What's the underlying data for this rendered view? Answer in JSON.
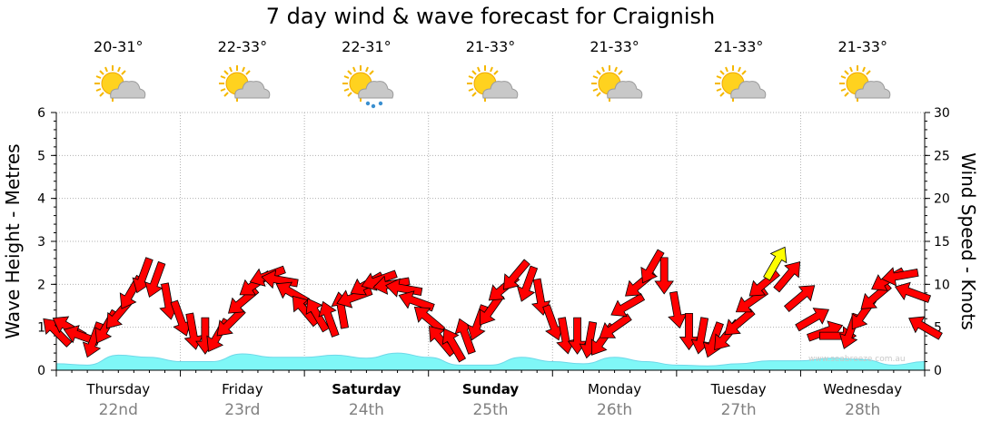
{
  "title": "7 day wind & wave forecast for Craignish",
  "watermark": "www.seabreeze.com.au",
  "colors": {
    "arrow": "#ff0000",
    "arrow_highlight": "#ffff00",
    "wave_fill": "#7ff7f7",
    "wave_line": "#6ed8e8",
    "grid": "#b0b0b0"
  },
  "days": [
    {
      "name": "Thursday",
      "date": "22nd",
      "temp": "20-31°",
      "icon": "sun-cloud-icon",
      "bold": false
    },
    {
      "name": "Friday",
      "date": "23rd",
      "temp": "22-33°",
      "icon": "sun-cloud-icon",
      "bold": false
    },
    {
      "name": "Saturday",
      "date": "24th",
      "temp": "22-31°",
      "icon": "sun-cloud-rain-icon",
      "bold": true
    },
    {
      "name": "Sunday",
      "date": "25th",
      "temp": "21-33°",
      "icon": "sun-cloud-icon",
      "bold": true
    },
    {
      "name": "Monday",
      "date": "26th",
      "temp": "21-33°",
      "icon": "sun-cloud-icon",
      "bold": false
    },
    {
      "name": "Tuesday",
      "date": "27th",
      "temp": "21-33°",
      "icon": "sun-cloud-icon",
      "bold": false
    },
    {
      "name": "Wednesday",
      "date": "28th",
      "temp": "21-33°",
      "icon": "sun-cloud-icon",
      "bold": false
    }
  ],
  "chart_data": {
    "type": "area",
    "title": "7 day wind & wave forecast for Craignish",
    "x_unit": "day",
    "x_range": [
      0,
      7
    ],
    "left_axis": {
      "label": "Wave Height - Metres",
      "range": [
        0,
        6
      ],
      "ticks": [
        "0",
        "1",
        "2",
        "3",
        "4",
        "5",
        "6"
      ]
    },
    "right_axis": {
      "label": "Wind Speed - Knots",
      "range": [
        0,
        30
      ],
      "ticks": [
        "0",
        "5",
        "10",
        "15",
        "20",
        "25",
        "30"
      ]
    },
    "grid": true,
    "wave_height_m": {
      "x": [
        0,
        0.25,
        0.5,
        0.75,
        1,
        1.25,
        1.5,
        1.75,
        2,
        2.25,
        2.5,
        2.75,
        3,
        3.25,
        3.5,
        3.75,
        4,
        4.25,
        4.5,
        4.75,
        5,
        5.25,
        5.5,
        5.75,
        6,
        6.25,
        6.5,
        6.75,
        7
      ],
      "y": [
        0.15,
        0.12,
        0.35,
        0.3,
        0.2,
        0.2,
        0.38,
        0.3,
        0.3,
        0.35,
        0.28,
        0.4,
        0.3,
        0.12,
        0.12,
        0.3,
        0.2,
        0.15,
        0.3,
        0.2,
        0.12,
        0.1,
        0.15,
        0.22,
        0.22,
        0.28,
        0.25,
        0.12,
        0.2
      ]
    },
    "wind_knots": {
      "x": [
        0.0,
        0.1,
        0.2,
        0.3,
        0.4,
        0.5,
        0.6,
        0.7,
        0.8,
        0.9,
        1.0,
        1.1,
        1.2,
        1.3,
        1.4,
        1.5,
        1.6,
        1.7,
        1.8,
        1.9,
        2.0,
        2.1,
        2.2,
        2.3,
        2.4,
        2.5,
        2.6,
        2.7,
        2.8,
        2.9,
        3.0,
        3.1,
        3.2,
        3.3,
        3.4,
        3.5,
        3.6,
        3.7,
        3.8,
        3.9,
        4.0,
        4.1,
        4.2,
        4.3,
        4.4,
        4.5,
        4.6,
        4.7,
        4.8,
        4.9,
        5.0,
        5.1,
        5.2,
        5.3,
        5.4,
        5.5,
        5.6,
        5.7,
        5.8,
        5.9,
        6.0,
        6.1,
        6.2,
        6.3,
        6.4,
        6.5,
        6.6,
        6.7,
        6.8,
        6.9,
        7.0
      ],
      "y": [
        4.5,
        5.0,
        4.0,
        3.5,
        5.0,
        6.5,
        9.0,
        11.0,
        10.5,
        8.0,
        6.0,
        4.5,
        4.0,
        4.0,
        5.5,
        8.0,
        10.0,
        11.0,
        10.5,
        9.0,
        7.0,
        6.5,
        6.0,
        7.0,
        8.5,
        10.0,
        10.5,
        10.0,
        9.5,
        8.0,
        6.0,
        3.5,
        3.0,
        4.0,
        5.5,
        7.0,
        9.5,
        11.0,
        10.0,
        8.5,
        5.5,
        4.0,
        4.0,
        3.5,
        3.5,
        5.0,
        7.5,
        10.0,
        12.0,
        11.0,
        7.0,
        4.5,
        4.0,
        3.5,
        4.0,
        5.5,
        8.0,
        10.0,
        12.5,
        11.0,
        8.5,
        6.0,
        4.5,
        4.0,
        4.5,
        6.5,
        8.5,
        10.5,
        11.0,
        9.0,
        5.0
      ],
      "direction_deg": [
        315,
        300,
        290,
        200,
        210,
        220,
        210,
        200,
        200,
        170,
        160,
        170,
        180,
        210,
        225,
        230,
        235,
        250,
        280,
        300,
        320,
        330,
        340,
        350,
        250,
        240,
        250,
        260,
        280,
        290,
        310,
        320,
        330,
        340,
        200,
        215,
        230,
        220,
        200,
        170,
        160,
        170,
        180,
        190,
        215,
        235,
        240,
        230,
        210,
        180,
        170,
        180,
        190,
        200,
        220,
        230,
        235,
        230,
        30,
        40,
        50,
        60,
        70,
        90,
        200,
        215,
        230,
        240,
        260,
        290,
        300
      ],
      "highlight_index": 58
    }
  }
}
